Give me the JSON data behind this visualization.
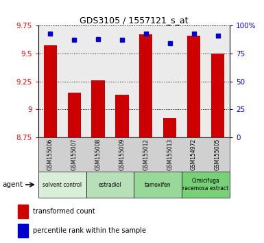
{
  "title": "GDS3105 / 1557121_s_at",
  "samples": [
    "GSM155006",
    "GSM155007",
    "GSM155008",
    "GSM155009",
    "GSM155012",
    "GSM155013",
    "GSM154972",
    "GSM155005"
  ],
  "red_values": [
    9.57,
    9.15,
    9.26,
    9.13,
    9.67,
    8.92,
    9.66,
    9.5
  ],
  "blue_values": [
    93,
    87,
    88,
    87,
    93,
    84,
    93,
    91
  ],
  "ylim_left": [
    8.75,
    9.75
  ],
  "ylim_right": [
    0,
    100
  ],
  "yticks_left": [
    8.75,
    9.0,
    9.25,
    9.5,
    9.75
  ],
  "ytick_labels_left": [
    "8.75",
    "9",
    "9.25",
    "9.5",
    "9.75"
  ],
  "yticks_right": [
    0,
    25,
    50,
    75,
    100
  ],
  "ytick_labels_right": [
    "0",
    "25",
    "50",
    "75",
    "100%"
  ],
  "groups": [
    {
      "label": "solvent control",
      "start": 0,
      "end": 2,
      "color": "#d8eed8"
    },
    {
      "label": "estradiol",
      "start": 2,
      "end": 4,
      "color": "#b8e0b8"
    },
    {
      "label": "tamoxifen",
      "start": 4,
      "end": 6,
      "color": "#98d898"
    },
    {
      "label": "Cimicifuga\nracemosa extract",
      "start": 6,
      "end": 8,
      "color": "#78d078"
    }
  ],
  "legend_red": "transformed count",
  "legend_blue": "percentile rank within the sample",
  "bar_color": "#cc0000",
  "dot_color": "#0000cc",
  "bar_bottom": 8.75,
  "bar_width": 0.55,
  "agent_label": "agent",
  "plot_bg_color": "#ebebeb",
  "sample_bg_color": "#d0d0d0"
}
